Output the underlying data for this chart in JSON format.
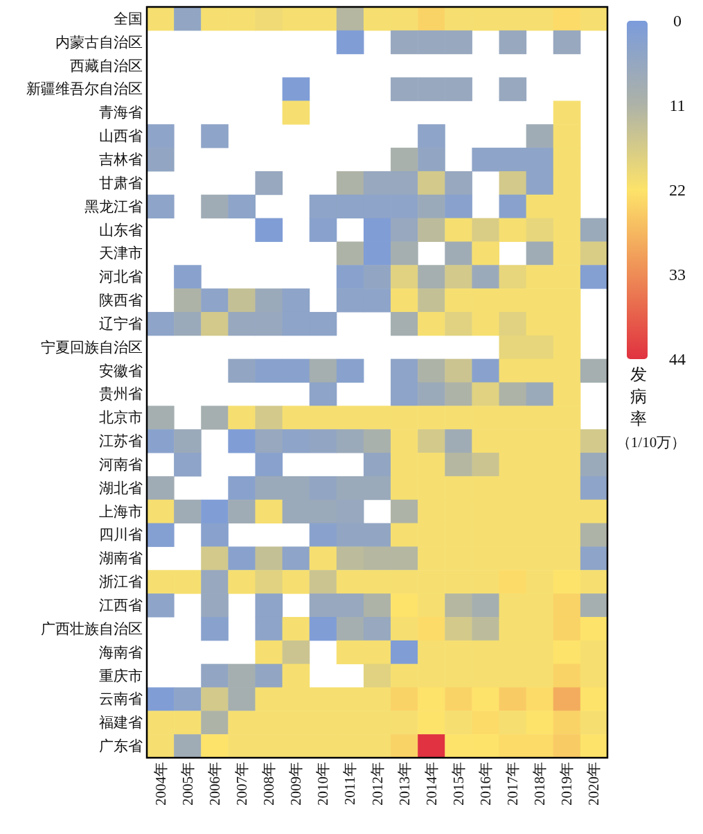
{
  "chart_data": {
    "type": "heatmap",
    "clabel": "发病率（1/10万）",
    "clim": [
      0,
      44
    ],
    "cticks": [
      0,
      11,
      22,
      33,
      44
    ],
    "categories": [
      "2004年",
      "2005年",
      "2006年",
      "2007年",
      "2008年",
      "2009年",
      "2010年",
      "2011年",
      "2012年",
      "2013年",
      "2014年",
      "2015年",
      "2016年",
      "2017年",
      "2018年",
      "2019年",
      "2020年"
    ],
    "y_categories": [
      "全国",
      "内蒙古自治区",
      "西藏自治区",
      "新疆维吾尔自治区",
      "青海省",
      "山西省",
      "吉林省",
      "甘肃省",
      "黑龙江省",
      "山东省",
      "天津市",
      "河北省",
      "陕西省",
      "辽宁省",
      "宁夏回族自治区",
      "安徽省",
      "贵州省",
      "北京市",
      "江苏省",
      "河南省",
      "湖北省",
      "上海市",
      "四川省",
      "湖南省",
      "浙江省",
      "江西省",
      "广西壮族自治区",
      "海南省",
      "重庆市",
      "云南省",
      "福建省",
      "广东省"
    ],
    "cells": [
      [
        21,
        5,
        21,
        21,
        20,
        21,
        21,
        12,
        21,
        21,
        24,
        21,
        21,
        21,
        21,
        23,
        21
      ],
      [
        null,
        null,
        null,
        null,
        null,
        null,
        null,
        1,
        null,
        6,
        6,
        6,
        null,
        6,
        null,
        6,
        null
      ],
      [
        null,
        null,
        null,
        null,
        null,
        null,
        null,
        null,
        null,
        null,
        null,
        null,
        null,
        null,
        null,
        null,
        null
      ],
      [
        null,
        null,
        null,
        null,
        null,
        1,
        null,
        null,
        null,
        6,
        6,
        6,
        null,
        6,
        null,
        null,
        null
      ],
      [
        null,
        null,
        null,
        null,
        null,
        21,
        null,
        null,
        null,
        null,
        null,
        null,
        null,
        null,
        null,
        21,
        null
      ],
      [
        4,
        null,
        4,
        null,
        null,
        null,
        null,
        null,
        null,
        null,
        4,
        null,
        null,
        null,
        8,
        21,
        null
      ],
      [
        5,
        null,
        null,
        null,
        null,
        null,
        null,
        null,
        null,
        10,
        5,
        null,
        4,
        4,
        4,
        21,
        null
      ],
      [
        null,
        null,
        null,
        null,
        6,
        null,
        null,
        11,
        6,
        6,
        16,
        6,
        null,
        16,
        4,
        21,
        null
      ],
      [
        4,
        null,
        8,
        4,
        null,
        null,
        4,
        4,
        4,
        4,
        7,
        3,
        null,
        3,
        21,
        21,
        null
      ],
      [
        null,
        null,
        null,
        null,
        1,
        null,
        3,
        null,
        1,
        6,
        13,
        21,
        17,
        21,
        19,
        21,
        7
      ],
      [
        null,
        null,
        null,
        null,
        null,
        null,
        null,
        11,
        1,
        9,
        null,
        8,
        21,
        null,
        8,
        21,
        17
      ],
      [
        null,
        3,
        null,
        null,
        null,
        null,
        null,
        3,
        5,
        18,
        9,
        16,
        7,
        19,
        21,
        21,
        2
      ],
      [
        null,
        11,
        4,
        14,
        7,
        4,
        null,
        4,
        4,
        21,
        14,
        21,
        21,
        21,
        21,
        21,
        null
      ],
      [
        4,
        7,
        16,
        6,
        6,
        4,
        4,
        null,
        null,
        9,
        21,
        18,
        21,
        18,
        21,
        21,
        null
      ],
      [
        null,
        null,
        null,
        null,
        null,
        null,
        null,
        null,
        null,
        null,
        null,
        null,
        null,
        19,
        19,
        21,
        null
      ],
      [
        null,
        null,
        null,
        5,
        3,
        3,
        9,
        3,
        null,
        4,
        11,
        15,
        3,
        21,
        21,
        21,
        9
      ],
      [
        null,
        null,
        null,
        null,
        null,
        null,
        4,
        null,
        null,
        4,
        7,
        11,
        18,
        11,
        7,
        21,
        null
      ],
      [
        9,
        null,
        9,
        21,
        16,
        21,
        21,
        21,
        21,
        21,
        21,
        21,
        21,
        21,
        21,
        21,
        null
      ],
      [
        3,
        7,
        null,
        1,
        6,
        4,
        5,
        7,
        10,
        21,
        16,
        8,
        21,
        21,
        21,
        21,
        16
      ],
      [
        null,
        4,
        null,
        null,
        3,
        null,
        null,
        null,
        5,
        21,
        21,
        12,
        15,
        21,
        21,
        21,
        7
      ],
      [
        8,
        null,
        null,
        3,
        7,
        7,
        5,
        7,
        7,
        21,
        21,
        21,
        21,
        21,
        21,
        21,
        4
      ],
      [
        21,
        8,
        1,
        8,
        21,
        7,
        7,
        6,
        null,
        11,
        21,
        21,
        21,
        21,
        21,
        21,
        21
      ],
      [
        2,
        null,
        3,
        null,
        null,
        null,
        3,
        5,
        5,
        21,
        21,
        21,
        21,
        21,
        21,
        21,
        11
      ],
      [
        null,
        null,
        16,
        3,
        14,
        4,
        21,
        13,
        12,
        12,
        21,
        21,
        21,
        21,
        21,
        21,
        4
      ],
      [
        21,
        21,
        6,
        21,
        18,
        21,
        15,
        21,
        21,
        21,
        21,
        21,
        21,
        23,
        21,
        22,
        21
      ],
      [
        4,
        null,
        6,
        null,
        4,
        null,
        6,
        6,
        11,
        22,
        21,
        12,
        9,
        21,
        21,
        24,
        9
      ],
      [
        null,
        null,
        3,
        null,
        4,
        21,
        1,
        9,
        6,
        21,
        23,
        16,
        13,
        21,
        21,
        24,
        22
      ],
      [
        null,
        null,
        null,
        null,
        21,
        15,
        null,
        21,
        21,
        1,
        21,
        21,
        21,
        21,
        21,
        22,
        21
      ],
      [
        null,
        null,
        5,
        9,
        5,
        21,
        null,
        null,
        18,
        21,
        21,
        21,
        21,
        21,
        21,
        24,
        21
      ],
      [
        1,
        4,
        16,
        9,
        21,
        21,
        21,
        21,
        21,
        24,
        22,
        24,
        22,
        25,
        23,
        29,
        22
      ],
      [
        21,
        21,
        11,
        21,
        21,
        21,
        21,
        21,
        21,
        21,
        22,
        21,
        23,
        21,
        22,
        24,
        21
      ],
      [
        21,
        8,
        22,
        21,
        21,
        21,
        21,
        21,
        21,
        24,
        44,
        22,
        22,
        23,
        23,
        25,
        22
      ]
    ]
  }
}
